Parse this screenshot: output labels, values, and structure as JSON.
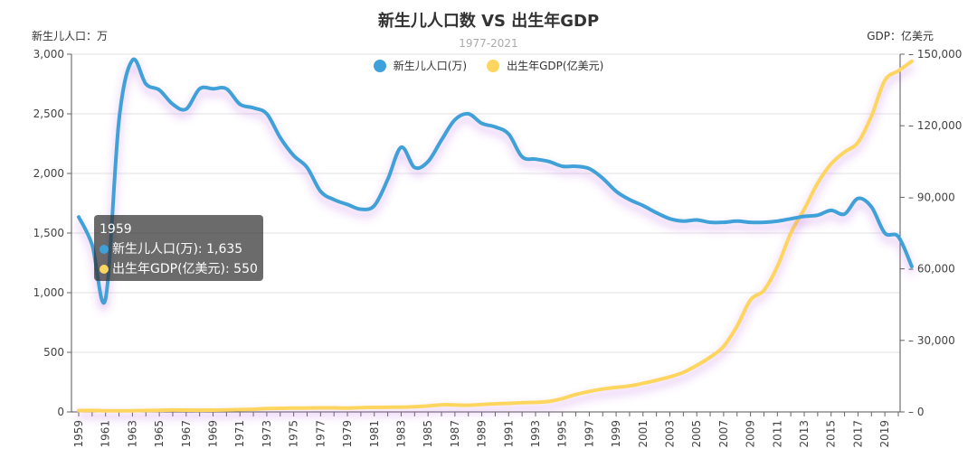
{
  "chart_data": {
    "type": "line",
    "title": "新生儿人口数 VS 出生年GDP",
    "subtitle": "1977-2021",
    "y_left_name": "新生儿人口：万",
    "y_right_name": "GDP：亿美元",
    "x_start": 1959,
    "x_end": 2020,
    "x_tick_step": 2,
    "y_left_ticks": [
      "0",
      "500",
      "1,000",
      "1,500",
      "2,000",
      "2,500",
      "3,000"
    ],
    "y_right_ticks": [
      "0",
      "30,000",
      "60,000",
      "90,000",
      "120,000",
      "150,000"
    ],
    "ylim_left": [
      0,
      3000
    ],
    "ylim_right": [
      0,
      150000
    ],
    "series": [
      {
        "name": "新生儿人口(万)",
        "color": "#3fa1d9",
        "axis": "left",
        "values": [
          1635,
          1400,
          950,
          2450,
          2950,
          2750,
          2700,
          2580,
          2540,
          2710,
          2710,
          2710,
          2580,
          2550,
          2500,
          2300,
          2150,
          2050,
          1850,
          1780,
          1740,
          1700,
          1730,
          1950,
          2220,
          2050,
          2100,
          2280,
          2450,
          2500,
          2420,
          2390,
          2330,
          2140,
          2120,
          2100,
          2060,
          2060,
          2040,
          1960,
          1850,
          1780,
          1730,
          1670,
          1620,
          1600,
          1610,
          1590,
          1590,
          1600,
          1590,
          1590,
          1600,
          1620,
          1640,
          1650,
          1690,
          1660,
          1790,
          1720,
          1500,
          1470,
          1220
        ]
      },
      {
        "name": "出生年GDP(亿美元)",
        "color": "#fed65f",
        "axis": "right",
        "values": [
          550,
          600,
          500,
          470,
          510,
          600,
          700,
          780,
          770,
          720,
          760,
          820,
          1000,
          1150,
          1400,
          1500,
          1600,
          1600,
          1700,
          1700,
          1600,
          1800,
          1900,
          1950,
          2000,
          2200,
          2500,
          3000,
          2900,
          2800,
          3100,
          3400,
          3600,
          3900,
          4000,
          4400,
          5600,
          7300,
          8600,
          9600,
          10300,
          10900,
          12000,
          13300,
          14700,
          16600,
          19500,
          23000,
          27500,
          36000,
          47000,
          51000,
          61000,
          75000,
          85000,
          96000,
          104000,
          109000,
          113000,
          124000,
          139000,
          143000,
          147000
        ]
      }
    ],
    "tooltip": {
      "year": "1959",
      "row1": "新生儿人口(万): 1,635",
      "row2": "出生年GDP(亿美元): 550"
    }
  }
}
